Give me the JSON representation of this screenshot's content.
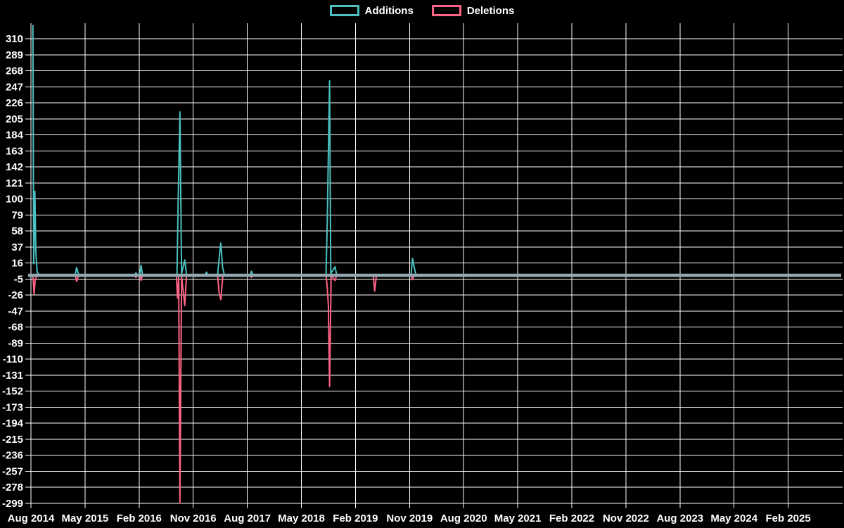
{
  "legend": {
    "items": [
      {
        "label": "Additions"
      },
      {
        "label": "Deletions"
      }
    ]
  },
  "chart_data": {
    "type": "line",
    "title": "",
    "legend_position": "top",
    "background_color": "#000000",
    "grid": true,
    "grid_color": "#ffffff",
    "text_color": "#ffffff",
    "zero_band_color": "#93a9b1",
    "x_tick_labels": [
      "Aug 2014",
      "May 2015",
      "Feb 2016",
      "Nov 2016",
      "Aug 2017",
      "May 2018",
      "Feb 2019",
      "Nov 2019",
      "Aug 2020",
      "May 2021",
      "Feb 2022",
      "Nov 2022",
      "Aug 2023",
      "May 2024",
      "Feb 2025"
    ],
    "x_tick_interval_months": 9,
    "x_range": [
      "2014-08-01",
      "2025-10-25"
    ],
    "y_ticks": [
      310,
      289,
      268,
      247,
      226,
      205,
      184,
      163,
      142,
      121,
      100,
      79,
      58,
      37,
      16,
      -5,
      -26,
      -47,
      -68,
      -89,
      -110,
      -131,
      -152,
      -173,
      -194,
      -215,
      -236,
      -257,
      -278,
      -299
    ],
    "y_range": [
      -299,
      310
    ],
    "y_step": 21,
    "series": [
      {
        "name": "Additions",
        "color": "#4bc0c0",
        "points": [
          [
            "2014-08-11",
            328
          ],
          [
            "2014-08-15",
            15
          ],
          [
            "2014-08-21",
            110
          ],
          [
            "2014-08-26",
            30
          ],
          [
            "2014-09-02",
            4
          ],
          [
            "2014-09-13",
            0
          ],
          [
            "2015-03-12",
            0
          ],
          [
            "2015-03-19",
            10
          ],
          [
            "2015-03-30",
            0
          ],
          [
            "2016-01-08",
            0
          ],
          [
            "2016-01-15",
            3
          ],
          [
            "2016-01-22",
            0
          ],
          [
            "2016-02-04",
            0
          ],
          [
            "2016-02-11",
            13
          ],
          [
            "2016-02-18",
            0
          ],
          [
            "2016-08-10",
            0
          ],
          [
            "2016-08-16",
            95
          ],
          [
            "2016-08-25",
            214
          ],
          [
            "2016-09-03",
            2
          ],
          [
            "2016-09-19",
            20
          ],
          [
            "2016-09-28",
            0
          ],
          [
            "2017-01-01",
            0
          ],
          [
            "2017-01-07",
            4
          ],
          [
            "2017-01-14",
            0
          ],
          [
            "2017-03-03",
            0
          ],
          [
            "2017-03-10",
            20
          ],
          [
            "2017-03-19",
            42
          ],
          [
            "2017-03-28",
            10
          ],
          [
            "2017-04-07",
            0
          ],
          [
            "2017-08-15",
            0
          ],
          [
            "2017-08-22",
            5
          ],
          [
            "2017-08-30",
            0
          ],
          [
            "2018-09-04",
            0
          ],
          [
            "2018-09-10",
            65
          ],
          [
            "2018-09-22",
            255
          ],
          [
            "2018-09-28",
            2
          ],
          [
            "2018-10-19",
            11
          ],
          [
            "2018-10-28",
            0
          ],
          [
            "2019-11-09",
            0
          ],
          [
            "2019-11-16",
            22
          ],
          [
            "2019-11-25",
            10
          ],
          [
            "2019-12-03",
            0
          ],
          [
            "2025-10-25",
            0
          ]
        ]
      },
      {
        "name": "Deletions",
        "color": "#ff6384",
        "points": [
          [
            "2014-08-11",
            0
          ],
          [
            "2014-08-17",
            -25
          ],
          [
            "2014-08-22",
            -8
          ],
          [
            "2014-09-01",
            0
          ],
          [
            "2015-03-12",
            0
          ],
          [
            "2015-03-19",
            -8
          ],
          [
            "2015-03-30",
            0
          ],
          [
            "2016-01-08",
            0
          ],
          [
            "2016-01-15",
            -3
          ],
          [
            "2016-01-22",
            0
          ],
          [
            "2016-02-04",
            0
          ],
          [
            "2016-02-11",
            -7
          ],
          [
            "2016-02-18",
            0
          ],
          [
            "2016-08-07",
            0
          ],
          [
            "2016-08-13",
            -30
          ],
          [
            "2016-08-19",
            -3
          ],
          [
            "2016-08-25",
            -299
          ],
          [
            "2016-09-03",
            -2
          ],
          [
            "2016-09-19",
            -40
          ],
          [
            "2016-09-28",
            0
          ],
          [
            "2016-11-08",
            0
          ],
          [
            "2016-11-13",
            -2
          ],
          [
            "2016-11-19",
            0
          ],
          [
            "2017-03-03",
            0
          ],
          [
            "2017-03-10",
            -22
          ],
          [
            "2017-03-19",
            -32
          ],
          [
            "2017-03-30",
            0
          ],
          [
            "2017-08-15",
            0
          ],
          [
            "2017-08-22",
            -3
          ],
          [
            "2017-08-30",
            0
          ],
          [
            "2018-09-04",
            0
          ],
          [
            "2018-09-10",
            -15
          ],
          [
            "2018-09-16",
            -40
          ],
          [
            "2018-09-22",
            -146
          ],
          [
            "2018-09-30",
            0
          ],
          [
            "2018-10-19",
            -7
          ],
          [
            "2018-10-28",
            0
          ],
          [
            "2019-04-30",
            0
          ],
          [
            "2019-05-07",
            -21
          ],
          [
            "2019-05-16",
            0
          ],
          [
            "2019-11-09",
            0
          ],
          [
            "2019-11-16",
            -6
          ],
          [
            "2019-11-25",
            0
          ],
          [
            "2025-10-25",
            0
          ]
        ]
      }
    ]
  }
}
